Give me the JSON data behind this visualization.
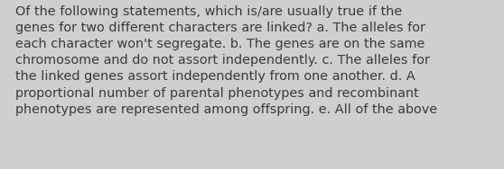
{
  "lines": [
    "Of the following statements, which is/are usually true if the",
    "genes for two different characters are linked? a. The alleles for",
    "each character won't segregate. b. The genes are on the same",
    "chromosome and do not assort independently. c. The alleles for",
    "the linked genes assort independently from one another. d. A",
    "proportional number of parental phenotypes and recombinant",
    "phenotypes are represented among offspring. e. All of the above"
  ],
  "background_color": "#d0cece",
  "text_color": "#3b3b3b",
  "font_size": 10.4,
  "fig_width": 5.58,
  "fig_height": 1.88,
  "dpi": 100
}
